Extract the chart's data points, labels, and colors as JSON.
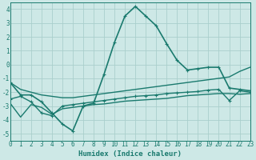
{
  "series": [
    {
      "x": [
        0,
        1,
        2,
        3,
        4,
        5,
        6,
        7,
        8,
        9,
        10,
        11,
        12,
        13,
        14,
        15,
        16,
        17,
        18,
        19,
        20,
        21,
        22,
        23
      ],
      "y": [
        -1.3,
        -2.2,
        -2.2,
        -2.7,
        -3.5,
        -4.3,
        -4.8,
        -3.0,
        -2.8,
        -0.7,
        1.6,
        3.5,
        4.2,
        3.5,
        2.8,
        1.5,
        0.3,
        -0.4,
        -0.3,
        -0.2,
        -0.2,
        -1.7,
        -1.8,
        -1.9
      ],
      "color": "#1a7a6e",
      "marker": "+",
      "linewidth": 1.2
    },
    {
      "x": [
        0,
        1,
        2,
        3,
        4,
        5,
        6,
        7,
        8,
        9,
        10,
        11,
        12,
        13,
        14,
        15,
        16,
        17,
        18,
        19,
        20,
        21,
        22,
        23
      ],
      "y": [
        -1.3,
        -1.8,
        -2.0,
        -2.2,
        -2.3,
        -2.4,
        -2.4,
        -2.3,
        -2.2,
        -2.1,
        -2.0,
        -1.9,
        -1.8,
        -1.7,
        -1.6,
        -1.5,
        -1.4,
        -1.3,
        -1.2,
        -1.1,
        -1.0,
        -0.9,
        -0.5,
        -0.2
      ],
      "color": "#1a7a6e",
      "marker": null,
      "linewidth": 1.0
    },
    {
      "x": [
        0,
        1,
        2,
        3,
        4,
        5,
        6,
        7,
        8,
        9,
        10,
        11,
        12,
        13,
        14,
        15,
        16,
        17,
        18,
        19,
        20,
        21,
        22,
        23
      ],
      "y": [
        -2.5,
        -2.3,
        -2.7,
        -3.5,
        -3.7,
        -3.0,
        -2.9,
        -2.8,
        -2.7,
        -2.6,
        -2.5,
        -2.4,
        -2.3,
        -2.25,
        -2.2,
        -2.1,
        -2.05,
        -2.0,
        -1.95,
        -1.85,
        -1.8,
        -2.6,
        -1.9,
        -2.0
      ],
      "color": "#1a7a6e",
      "marker": "+",
      "linewidth": 1.0
    },
    {
      "x": [
        0,
        1,
        2,
        3,
        4,
        5,
        6,
        7,
        8,
        9,
        10,
        11,
        12,
        13,
        14,
        15,
        16,
        17,
        18,
        19,
        20,
        21,
        22,
        23
      ],
      "y": [
        -2.8,
        -3.8,
        -2.9,
        -3.1,
        -3.6,
        -3.2,
        -3.1,
        -3.0,
        -2.9,
        -2.85,
        -2.75,
        -2.65,
        -2.6,
        -2.55,
        -2.5,
        -2.45,
        -2.35,
        -2.25,
        -2.2,
        -2.15,
        -2.1,
        -2.1,
        -2.15,
        -2.1
      ],
      "color": "#1a7a6e",
      "marker": null,
      "linewidth": 1.0
    }
  ],
  "xlabel": "Humidex (Indice chaleur)",
  "xlim": [
    0,
    23
  ],
  "ylim": [
    -5.5,
    4.5
  ],
  "yticks": [
    -5,
    -4,
    -3,
    -2,
    -1,
    0,
    1,
    2,
    3,
    4
  ],
  "xticks": [
    0,
    1,
    2,
    3,
    4,
    5,
    6,
    7,
    8,
    9,
    10,
    11,
    12,
    13,
    14,
    15,
    16,
    17,
    18,
    19,
    20,
    21,
    22,
    23
  ],
  "bg_color": "#cde8e6",
  "grid_color": "#aacfcc",
  "line_color": "#1a7a6e",
  "tick_color": "#1a7a6e",
  "label_color": "#1a7a6e",
  "xlabel_fontsize": 6.5,
  "tick_fontsize": 5.5
}
